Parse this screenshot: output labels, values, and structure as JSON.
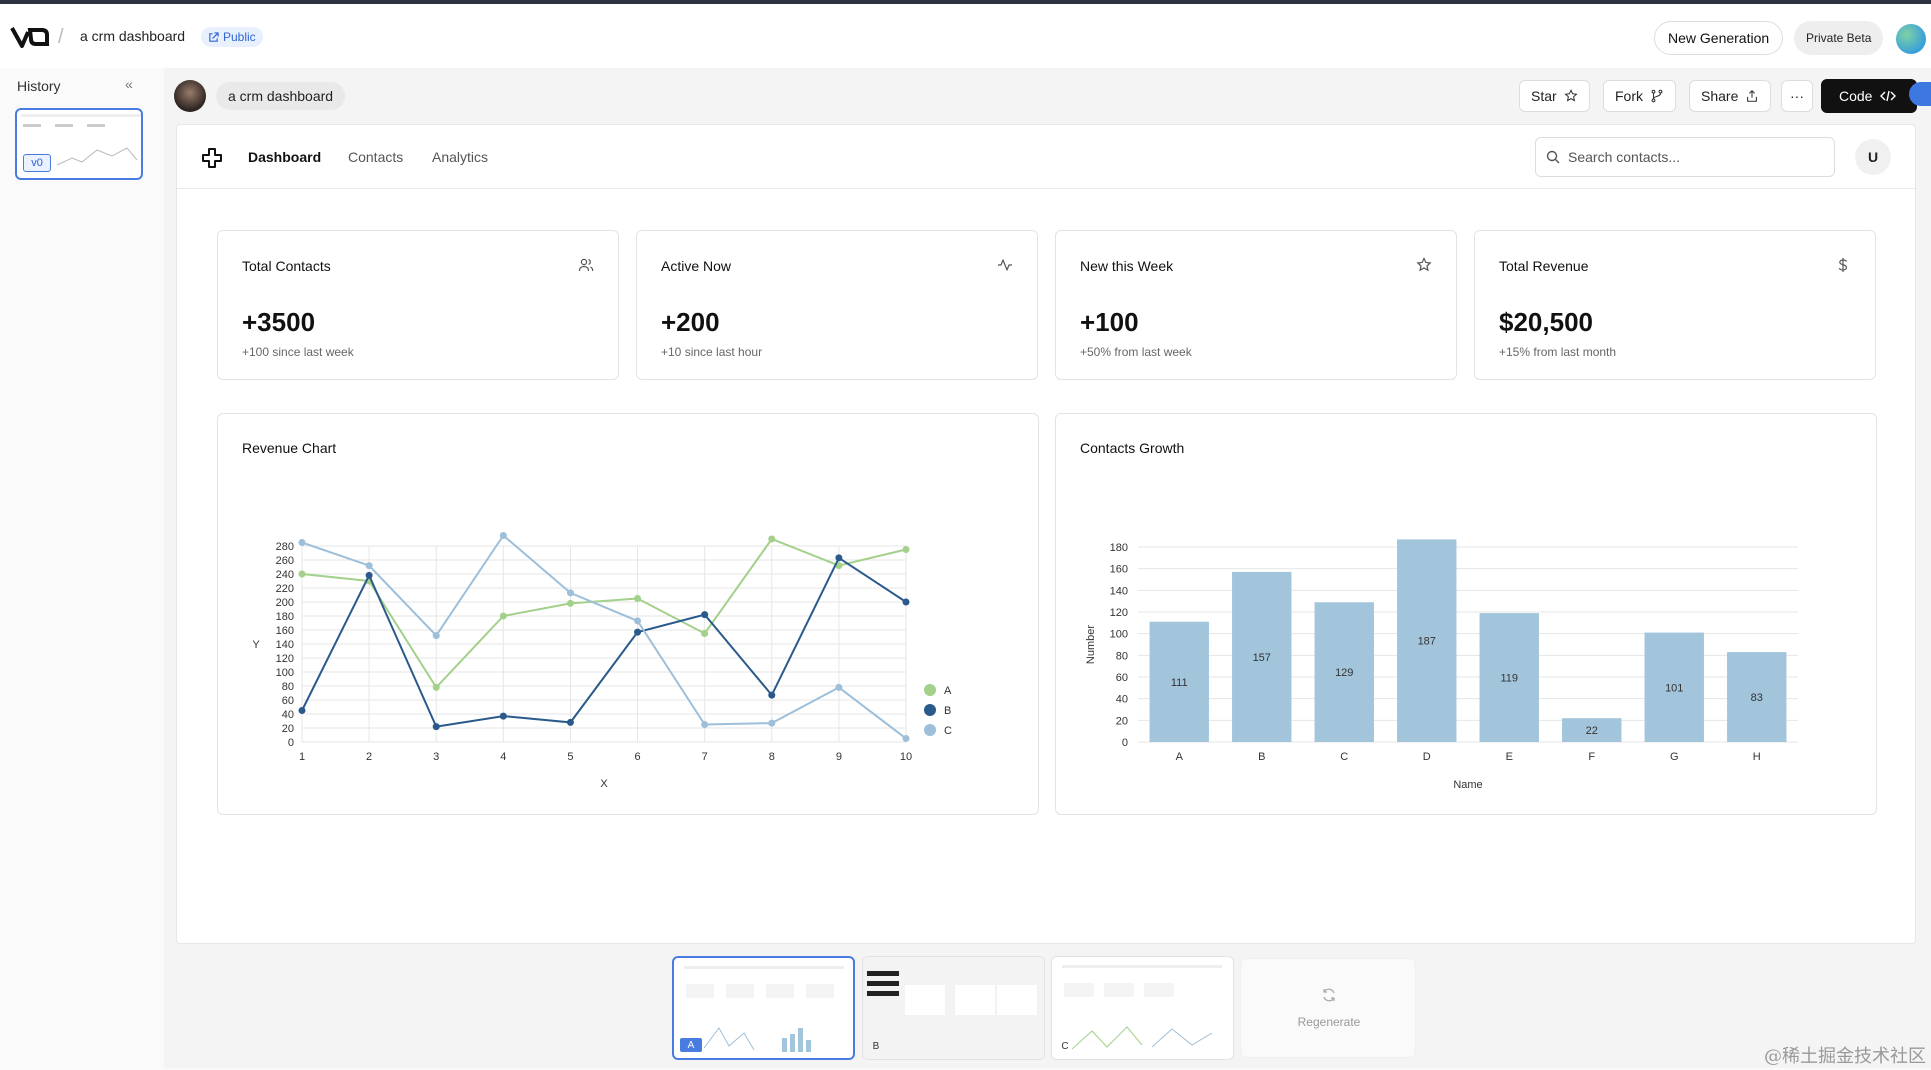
{
  "app": {
    "project_name": "a crm dashboard",
    "visibility_badge": "Public",
    "new_generation_label": "New Generation",
    "beta_label": "Private Beta"
  },
  "history": {
    "title": "History",
    "items": [
      {
        "version": "v0"
      }
    ]
  },
  "toolbar": {
    "breadcrumb": "a crm dashboard",
    "star_label": "Star",
    "fork_label": "Fork",
    "share_label": "Share",
    "more_label": "···",
    "code_label": "Code"
  },
  "dashboard": {
    "nav": [
      {
        "label": "Dashboard",
        "active": true
      },
      {
        "label": "Contacts",
        "active": false
      },
      {
        "label": "Analytics",
        "active": false
      }
    ],
    "search": {
      "placeholder": "Search contacts..."
    },
    "user_initial": "U",
    "stats": [
      {
        "title": "Total Contacts",
        "value": "+3500",
        "sub": "+100 since last week",
        "icon": "users-icon"
      },
      {
        "title": "Active Now",
        "value": "+200",
        "sub": "+10 since last hour",
        "icon": "activity-icon"
      },
      {
        "title": "New this Week",
        "value": "+100",
        "sub": "+50% from last week",
        "icon": "star-icon"
      },
      {
        "title": "Total Revenue",
        "value": "$20,500",
        "sub": "+15% from last month",
        "icon": "dollar-icon"
      }
    ],
    "charts": [
      {
        "title": "Revenue Chart"
      },
      {
        "title": "Contacts Growth"
      }
    ]
  },
  "chart_data": [
    {
      "type": "line",
      "title": "Revenue Chart",
      "xlabel": "X",
      "ylabel": "Y",
      "x": [
        1,
        2,
        3,
        4,
        5,
        6,
        7,
        8,
        9,
        10
      ],
      "ylim": [
        0,
        280
      ],
      "yticks": [
        0,
        20,
        40,
        60,
        80,
        100,
        120,
        140,
        160,
        180,
        200,
        220,
        240,
        260,
        280
      ],
      "grid": true,
      "legend": "right",
      "series": [
        {
          "name": "A",
          "color": "#a3d08a",
          "values": [
            240,
            230,
            78,
            180,
            198,
            205,
            155,
            290,
            252,
            275
          ]
        },
        {
          "name": "B",
          "color": "#2a5a8c",
          "values": [
            45,
            238,
            22,
            37,
            28,
            157,
            182,
            67,
            263,
            200
          ]
        },
        {
          "name": "C",
          "color": "#9dbfd9",
          "values": [
            285,
            252,
            152,
            295,
            213,
            173,
            25,
            27,
            78,
            5
          ]
        }
      ]
    },
    {
      "type": "bar",
      "title": "Contacts Growth",
      "xlabel": "Name",
      "ylabel": "Number",
      "categories": [
        "A",
        "B",
        "C",
        "D",
        "E",
        "F",
        "G",
        "H"
      ],
      "values": [
        111,
        157,
        129,
        187,
        119,
        22,
        101,
        83
      ],
      "ylim": [
        0,
        180
      ],
      "yticks": [
        0,
        20,
        40,
        60,
        80,
        100,
        120,
        140,
        160,
        180
      ],
      "color": "#a2c5dc",
      "grid": true
    }
  ],
  "versions": [
    {
      "label": "A",
      "selected": true
    },
    {
      "label": "B",
      "selected": false
    },
    {
      "label": "C",
      "selected": false
    }
  ],
  "regenerate_label": "Regenerate",
  "watermark": "@稀土掘金技术社区"
}
